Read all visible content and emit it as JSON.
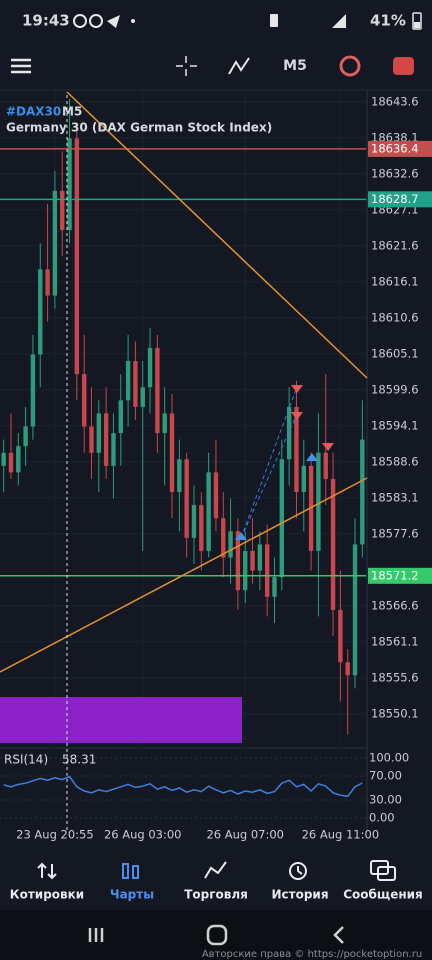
{
  "status_bar": {
    "time": "19:43",
    "battery": "41%"
  },
  "toolbar": {
    "timeframe": "M5"
  },
  "chart_data": [
    {
      "type": "candlestick",
      "symbol": "#DAX30",
      "timeframe": "M5",
      "title": "Germany 30 (DAX German Stock Index)",
      "open": [
        18588,
        18590,
        18587,
        18591,
        18594,
        18605,
        18618,
        18614,
        18630,
        18624,
        18638,
        18602,
        18594,
        18590,
        18596,
        18588,
        18593,
        18598,
        18604,
        18597,
        18600,
        18606,
        18593,
        18596,
        18584,
        18589,
        18577,
        18582,
        18575,
        18587,
        18580,
        18574,
        18578,
        18569,
        18575,
        18572,
        18576,
        18568,
        18571,
        18589,
        18597,
        18584,
        18588,
        18575,
        18590,
        18586,
        18566,
        18558,
        18556,
        18576
      ],
      "high": [
        18592,
        18596,
        18593,
        18597,
        18608,
        18622,
        18628,
        18633,
        18636,
        18644,
        18640,
        18608,
        18600,
        18598,
        18600,
        18596,
        18602,
        18608,
        18607,
        18604,
        18609,
        18608,
        18600,
        18599,
        18592,
        18590,
        18585,
        18584,
        18590,
        18592,
        18584,
        18583,
        18580,
        18578,
        18580,
        18578,
        18579,
        18574,
        18592,
        18600,
        18601,
        18592,
        18590,
        18596,
        18602,
        18590,
        18572,
        18560,
        18580,
        18598
      ],
      "low": [
        18584,
        18586,
        18585,
        18588,
        18592,
        18600,
        18610,
        18612,
        18620,
        18622,
        18598,
        18590,
        18586,
        18584,
        18586,
        18583,
        18588,
        18594,
        18595,
        18575,
        18596,
        18590,
        18585,
        18580,
        18578,
        18574,
        18573,
        18572,
        18574,
        18578,
        18571,
        18570,
        18566,
        18567,
        18570,
        18569,
        18565,
        18564,
        18569,
        18585,
        18580,
        18578,
        18572,
        18565,
        18582,
        18562,
        18552,
        18547,
        18554,
        18574
      ],
      "close": [
        18590,
        18587,
        18591,
        18594,
        18605,
        18618,
        18614,
        18630,
        18624,
        18638,
        18602,
        18594,
        18590,
        18596,
        18588,
        18593,
        18598,
        18604,
        18597,
        18600,
        18606,
        18593,
        18596,
        18584,
        18589,
        18577,
        18582,
        18575,
        18587,
        18580,
        18574,
        18578,
        18569,
        18575,
        18572,
        18576,
        18568,
        18571,
        18589,
        18597,
        18584,
        18588,
        18575,
        18590,
        18586,
        18566,
        18558,
        18556,
        18576,
        18592
      ],
      "up_color": "#2e9c7c",
      "down_color": "#c8464c",
      "xlim": [
        -0.5,
        49.5
      ],
      "xticks": [
        {
          "value": 7,
          "label": "23 Aug 20:55"
        },
        {
          "value": 19,
          "label": "26 Aug 03:00"
        },
        {
          "value": 33,
          "label": "26 Aug 07:00"
        },
        {
          "value": 46,
          "label": "26 Aug 11:00"
        }
      ],
      "ylim": [
        18544.9,
        18645.4
      ],
      "yticks": [
        18643.6,
        18638.1,
        18632.6,
        18627.1,
        18621.6,
        18616.1,
        18610.6,
        18605.1,
        18599.6,
        18594.1,
        18588.6,
        18583.1,
        18577.6,
        18566.6,
        18561.1,
        18555.6,
        18550.1
      ],
      "levels": [
        {
          "value": 18636.4,
          "color": "#c0504d"
        },
        {
          "value": 18628.7,
          "color": "#21a08a"
        },
        {
          "value": 18571.2,
          "color": "#36c96a"
        }
      ]
    },
    {
      "type": "line",
      "title": "RSI(14)",
      "color": "#3b82e0",
      "values": [
        55,
        52,
        56,
        58,
        62,
        66,
        63,
        67,
        64,
        69,
        52,
        45,
        42,
        47,
        44,
        48,
        52,
        56,
        51,
        53,
        57,
        48,
        52,
        46,
        50,
        43,
        47,
        44,
        53,
        47,
        42,
        46,
        40,
        45,
        43,
        47,
        41,
        44,
        58,
        63,
        52,
        56,
        45,
        57,
        53,
        42,
        38,
        36,
        52,
        58.31
      ],
      "ylim": [
        -16.7,
        113.3
      ],
      "yticks": [
        {
          "value": 100,
          "label": "100.00"
        },
        {
          "value": 70,
          "label": "70.00"
        },
        {
          "value": 30,
          "label": "30.00"
        },
        {
          "value": 0,
          "label": "0.00"
        }
      ]
    }
  ],
  "nav": [
    "Котировки",
    "Чарты",
    "Торговля",
    "История",
    "Сообщения"
  ],
  "watermark": "Авторские права © https://pocketoption.ru"
}
